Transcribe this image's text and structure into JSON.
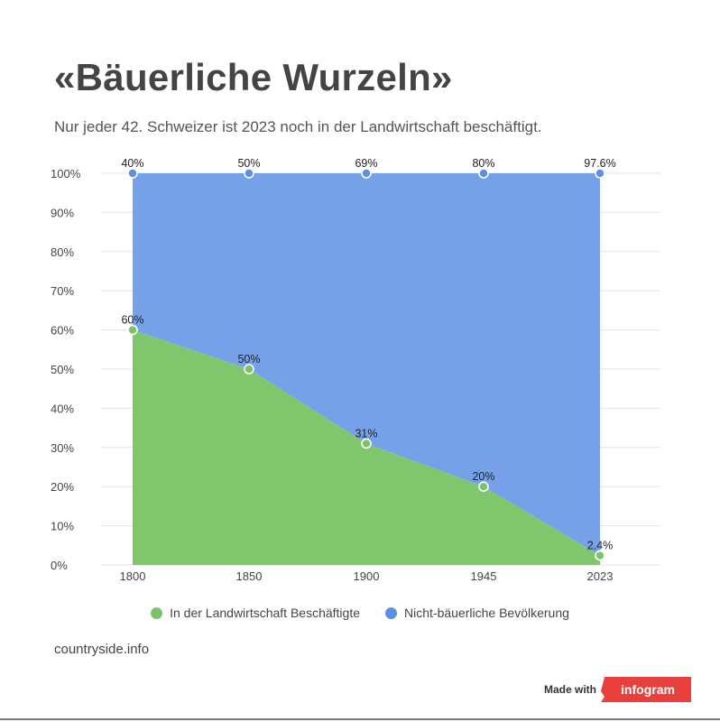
{
  "header": {
    "title": "«Bäuerliche Wurzeln»",
    "subtitle": "Nur jeder 42. Schweizer ist 2023 noch in der Landwirtschaft beschäftigt."
  },
  "footer": {
    "source": "countryside.info",
    "made_with": "Made with",
    "brand": "infogram"
  },
  "colors": {
    "green": "#7fc66c",
    "blue": "#76a1e8",
    "green_marker": "#7ac26b",
    "blue_marker": "#5f8fe0",
    "grid": "#e3e3e3",
    "brand": "#e8413d"
  },
  "chart_data": {
    "type": "area",
    "stacked": true,
    "categories": [
      "1800",
      "1850",
      "1900",
      "1945",
      "2023"
    ],
    "series": [
      {
        "name": "In der Landwirtschaft Beschäftigte",
        "values": [
          60,
          50,
          31,
          20,
          2.4
        ],
        "labels": [
          "60%",
          "50%",
          "31%",
          "20%",
          "2.4%"
        ],
        "color": "#7fc66c"
      },
      {
        "name": "Nicht-bäuerliche Bevölkerung",
        "values": [
          40,
          50,
          69,
          80,
          97.6
        ],
        "labels": [
          "40%",
          "50%",
          "69%",
          "80%",
          "97.6%"
        ],
        "color": "#76a1e8"
      }
    ],
    "ylim": [
      0,
      100
    ],
    "yticks": [
      "0%",
      "10%",
      "20%",
      "30%",
      "40%",
      "50%",
      "60%",
      "70%",
      "80%",
      "90%",
      "100%"
    ],
    "grid": true,
    "legend_position": "bottom"
  }
}
